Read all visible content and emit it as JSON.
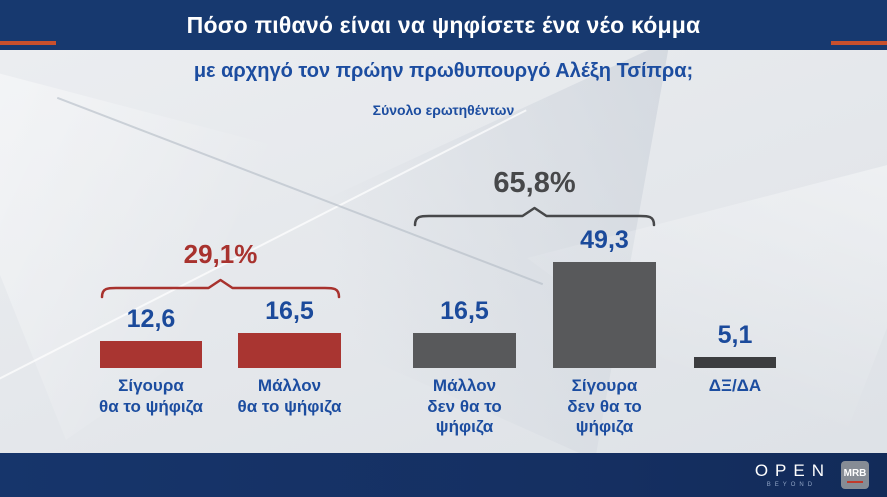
{
  "header": {
    "title": "Πόσο πιθανό είναι να ψηφίσετε ένα νέο κόμμα",
    "subtitle": "με αρχηγό τον πρώην πρωθυπουργό Αλέξη Τσίπρα;",
    "note": "Σύνολο ερωτηθέντων"
  },
  "chart_data": {
    "type": "bar",
    "title": "Πόσο πιθανό είναι να ψηφίσετε ένα νέο κόμμα με αρχηγό τον πρώην πρωθυπουργό Αλέξη Τσίπρα;",
    "subtitle": "Σύνολο ερωτηθέντων",
    "categories": [
      "Σίγουρα\nθα το ψήφιζα",
      "Μάλλον\nθα το ψήφιζα",
      "Μάλλον\nδεν θα το\nψήφιζα",
      "Σίγουρα\nδεν θα το\nψήφιζα",
      "ΔΞ/ΔΑ"
    ],
    "values": [
      12.6,
      16.5,
      16.5,
      49.3,
      5.1
    ],
    "value_labels": [
      "12,6",
      "16,5",
      "16,5",
      "49,3",
      "5,1"
    ],
    "bar_colors": [
      "#a93531",
      "#a93531",
      "#58595b",
      "#58595b",
      "#3c3d3f"
    ],
    "groups": [
      {
        "label": "29,1%",
        "from": 0,
        "to": 1,
        "color": "#a8322e"
      },
      {
        "label": "65,8%",
        "from": 2,
        "to": 3,
        "color": "#47484a"
      }
    ],
    "ylim": [
      0,
      55
    ],
    "grid": false,
    "legend": "none",
    "value_label_color": "#1b4a9b"
  },
  "footer": {
    "open": "OPEN",
    "beyond": "BEYOND",
    "mrb": "MRB"
  },
  "colors": {
    "header_bg": "#17396f",
    "accent_orange": "#c8502d",
    "text_blue": "#1c4da0",
    "red_bar": "#a93531",
    "gray_bar": "#58595b",
    "dark_bar": "#3c3d3f",
    "background": "#e6e9ed",
    "footer_bg": "#152f61"
  }
}
